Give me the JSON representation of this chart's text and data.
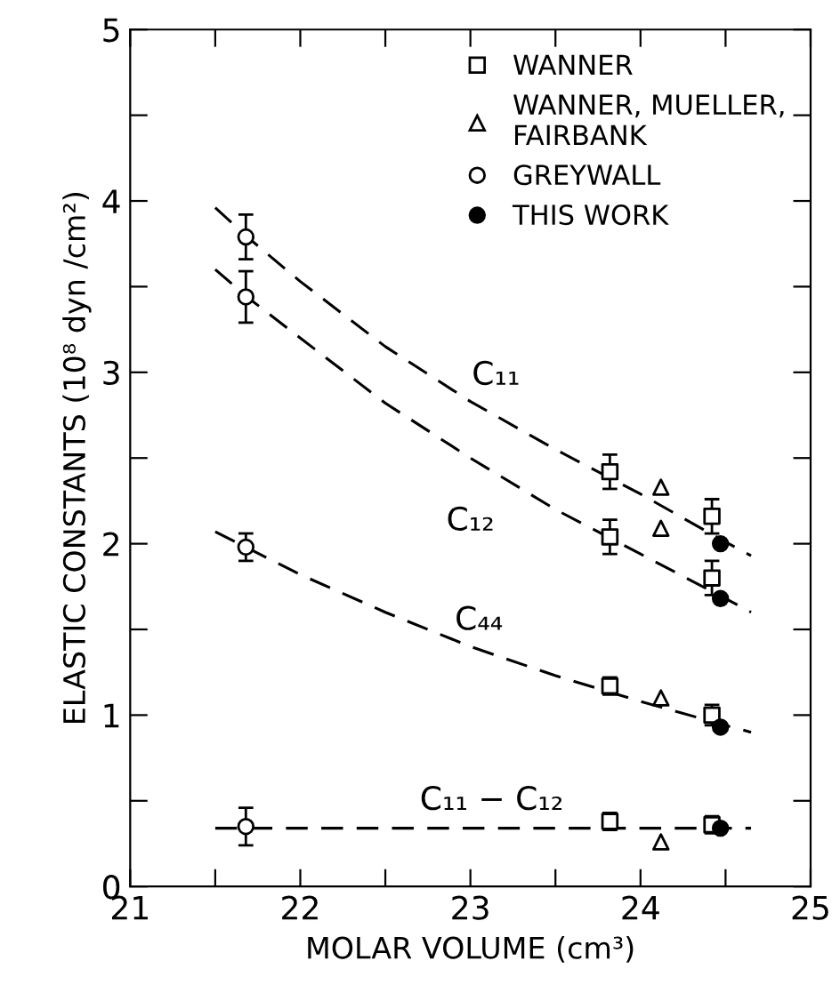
{
  "chart_data": {
    "type": "scatter",
    "xlabel": "MOLAR VOLUME (cm³)",
    "ylabel": "ELASTIC CONSTANTS (10⁸ dyn /cm²)",
    "xlim": [
      21,
      25
    ],
    "ylim": [
      0,
      5
    ],
    "xticks": [
      21,
      {
        "value": 21.5,
        "label": null
      },
      22,
      {
        "value": 22.5,
        "label": null
      },
      23,
      {
        "value": 23.5,
        "label": null
      },
      24,
      {
        "value": 24.5,
        "label": null
      },
      25
    ],
    "yticks": [
      0,
      {
        "value": 0.5,
        "label": null
      },
      1,
      {
        "value": 1.5,
        "label": null
      },
      2,
      {
        "value": 2.5,
        "label": null
      },
      3,
      {
        "value": 3.5,
        "label": null
      },
      4,
      {
        "value": 4.5,
        "label": null
      },
      5
    ],
    "grid": false,
    "legend": "top right",
    "series": [
      {
        "type": "line",
        "name": "C₁₁",
        "line_style": "dashed",
        "marker": "none",
        "color": "#000000",
        "x": [
          21.5,
          21.7,
          22,
          22.5,
          23,
          23.5,
          24,
          24.5,
          24.65
        ],
        "values": [
          3.96,
          3.78,
          3.53,
          3.15,
          2.83,
          2.55,
          2.29,
          2.01,
          1.93
        ]
      },
      {
        "type": "line",
        "name": "C₁₂",
        "line_style": "dashed",
        "marker": "none",
        "color": "#000000",
        "x": [
          21.5,
          21.7,
          22,
          22.5,
          23,
          23.5,
          24,
          24.5,
          24.65
        ],
        "values": [
          3.6,
          3.43,
          3.2,
          2.82,
          2.5,
          2.2,
          1.94,
          1.68,
          1.6
        ]
      },
      {
        "type": "line",
        "name": "C₄₄",
        "line_style": "dashed",
        "marker": "none",
        "color": "#000000",
        "x": [
          21.5,
          21.7,
          22,
          22.5,
          23,
          23.5,
          24,
          24.5,
          24.65
        ],
        "values": [
          2.07,
          1.97,
          1.82,
          1.6,
          1.4,
          1.23,
          1.08,
          0.94,
          0.9
        ]
      },
      {
        "type": "line",
        "name": "C₁₁ − C₁₂",
        "line_style": "dashed",
        "marker": "none",
        "color": "#000000",
        "x": [
          21.5,
          24.65
        ],
        "values": [
          0.34,
          0.34
        ]
      },
      {
        "name": "WANNER",
        "marker": "square",
        "color": "#000000",
        "x": [
          23.82,
          24.42,
          23.82,
          24.42,
          23.82,
          24.42,
          23.82,
          24.42
        ],
        "values": [
          2.42,
          2.16,
          2.04,
          1.8,
          1.17,
          1.0,
          0.38,
          0.36
        ],
        "errors": [
          0.1,
          0.1,
          0.1,
          0.1,
          0.05,
          0.06,
          0.05,
          0.05
        ]
      },
      {
        "name": "WANNER, MUELLER,\nFAIRBANK",
        "marker": "triangle",
        "color": "#000000",
        "x": [
          24.12,
          24.12,
          24.12,
          24.12
        ],
        "values": [
          2.33,
          2.09,
          1.1,
          0.26
        ]
      },
      {
        "name": "GREYWALL",
        "marker": "circle",
        "color": "#000000",
        "x": [
          21.68,
          21.68,
          21.68,
          21.68
        ],
        "values": [
          3.79,
          3.44,
          1.98,
          0.35
        ],
        "errors": [
          0.13,
          0.15,
          0.08,
          0.11
        ]
      },
      {
        "name": "THIS WORK",
        "marker": "circle",
        "color": "#000000",
        "x": [
          24.47,
          24.47,
          24.47,
          24.47
        ],
        "values": [
          2.0,
          1.68,
          0.93,
          0.34
        ]
      }
    ]
  }
}
